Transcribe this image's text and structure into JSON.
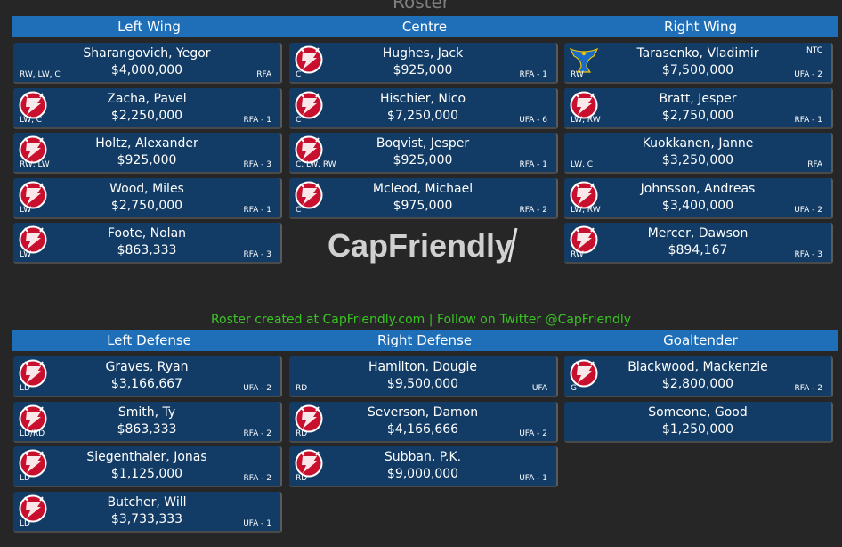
{
  "page_title": "Roster",
  "credit": "Roster created at CapFriendly.com  |  Follow on Twitter @CapFriendly",
  "watermark": "CapFriendly",
  "forwards": {
    "left_wing": {
      "header": "Left Wing",
      "players": [
        {
          "name": "Sharangovich, Yegor",
          "cap": "$4,000,000",
          "pos": "RW, LW, C",
          "status": "RFA",
          "logo": ""
        },
        {
          "name": "Zacha, Pavel",
          "cap": "$2,250,000",
          "pos": "LW, C",
          "status": "RFA - 1",
          "logo": "devils"
        },
        {
          "name": "Holtz, Alexander",
          "cap": "$925,000",
          "pos": "RW, LW",
          "status": "RFA - 3",
          "logo": "devils"
        },
        {
          "name": "Wood, Miles",
          "cap": "$2,750,000",
          "pos": "LW",
          "status": "RFA - 1",
          "logo": "devils"
        },
        {
          "name": "Foote, Nolan",
          "cap": "$863,333",
          "pos": "LW",
          "status": "RFA - 3",
          "logo": "devils"
        }
      ]
    },
    "centre": {
      "header": "Centre",
      "players": [
        {
          "name": "Hughes, Jack",
          "cap": "$925,000",
          "pos": "C",
          "status": "RFA - 1",
          "logo": "devils"
        },
        {
          "name": "Hischier, Nico",
          "cap": "$7,250,000",
          "pos": "C",
          "status": "UFA - 6",
          "logo": "devils"
        },
        {
          "name": "Boqvist, Jesper",
          "cap": "$925,000",
          "pos": "C, LW, RW",
          "status": "RFA - 1",
          "logo": "devils"
        },
        {
          "name": "Mcleod, Michael",
          "cap": "$975,000",
          "pos": "C",
          "status": "RFA - 2",
          "logo": "devils"
        }
      ]
    },
    "right_wing": {
      "header": "Right Wing",
      "players": [
        {
          "name": "Tarasenko, Vladimir",
          "cap": "$7,500,000",
          "pos": "RW",
          "status": "UFA - 2",
          "clause": "NTC",
          "logo": "blues"
        },
        {
          "name": "Bratt, Jesper",
          "cap": "$2,750,000",
          "pos": "LW, RW",
          "status": "RFA - 1",
          "logo": "devils"
        },
        {
          "name": "Kuokkanen, Janne",
          "cap": "$3,250,000",
          "pos": "LW, C",
          "status": "RFA",
          "logo": ""
        },
        {
          "name": "Johnsson, Andreas",
          "cap": "$3,400,000",
          "pos": "LW, RW",
          "status": "UFA - 2",
          "logo": "devils"
        },
        {
          "name": "Mercer, Dawson",
          "cap": "$894,167",
          "pos": "RW",
          "status": "RFA - 3",
          "logo": "devils"
        }
      ]
    }
  },
  "defense": {
    "left_defense": {
      "header": "Left Defense",
      "players": [
        {
          "name": "Graves, Ryan",
          "cap": "$3,166,667",
          "pos": "LD",
          "status": "UFA - 2",
          "logo": "devils"
        },
        {
          "name": "Smith, Ty",
          "cap": "$863,333",
          "pos": "LD/RD",
          "status": "RFA - 2",
          "logo": "devils"
        },
        {
          "name": "Siegenthaler, Jonas",
          "cap": "$1,125,000",
          "pos": "LD",
          "status": "RFA - 2",
          "logo": "devils"
        },
        {
          "name": "Butcher, Will",
          "cap": "$3,733,333",
          "pos": "LD",
          "status": "UFA - 1",
          "logo": "devils"
        }
      ]
    },
    "right_defense": {
      "header": "Right Defense",
      "players": [
        {
          "name": "Hamilton, Dougie",
          "cap": "$9,500,000",
          "pos": "RD",
          "status": "UFA",
          "logo": ""
        },
        {
          "name": "Severson, Damon",
          "cap": "$4,166,666",
          "pos": "RD",
          "status": "UFA - 2",
          "logo": "devils"
        },
        {
          "name": "Subban, P.K.",
          "cap": "$9,000,000",
          "pos": "RD",
          "status": "UFA - 1",
          "logo": "devils"
        }
      ]
    },
    "goaltender": {
      "header": "Goaltender",
      "players": [
        {
          "name": "Blackwood, Mackenzie",
          "cap": "$2,800,000",
          "pos": "G",
          "status": "RFA - 2",
          "logo": "devils"
        },
        {
          "name": "Someone, Good",
          "cap": "$1,250,000",
          "pos": "",
          "status": "",
          "logo": ""
        }
      ]
    }
  },
  "colors": {
    "header_bg": "#1f6fb8",
    "card_bg": "#123c66",
    "page_bg": "#262626",
    "credit": "#39c424",
    "devils_red": "#c8102e"
  }
}
